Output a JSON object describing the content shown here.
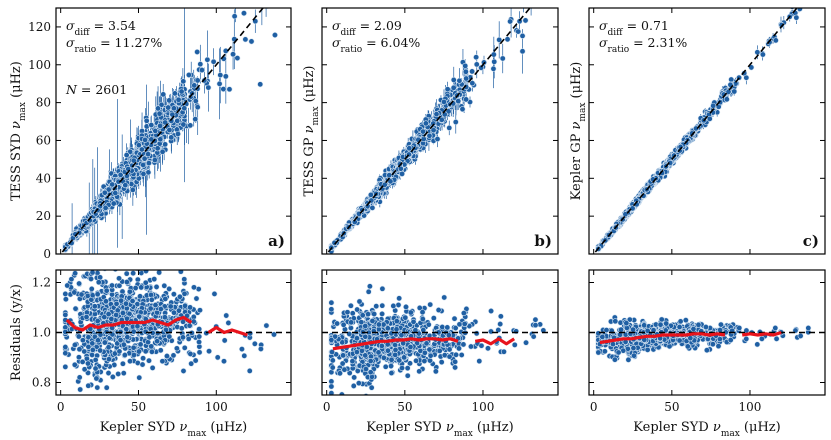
{
  "chart_data": [
    {
      "id": "a",
      "type": "scatter",
      "panel_label": "a)",
      "ylabel": "TESS SYD ν_max (μHz)",
      "xlabel": "",
      "xlim": [
        -3,
        148
      ],
      "ylim": [
        0,
        130
      ],
      "yticks": [
        "0",
        "20",
        "40",
        "60",
        "80",
        "100",
        "120"
      ],
      "annotations": [
        "σ_diff = 3.54",
        "σ_ratio = 11.27%",
        "N = 2601"
      ],
      "sigma_diff": 3.54,
      "sigma_ratio_pct": 11.27,
      "n_stars": 2601,
      "scatter_frac": 0.12,
      "reference_line": "y = x",
      "has_error_bars": true
    },
    {
      "id": "b",
      "type": "scatter",
      "panel_label": "b)",
      "ylabel": "TESS GP ν_max (μHz)",
      "xlabel": "",
      "xlim": [
        -3,
        148
      ],
      "ylim": [
        0,
        130
      ],
      "annotations": [
        "σ_diff = 2.09",
        "σ_ratio = 6.04%"
      ],
      "sigma_diff": 2.09,
      "sigma_ratio_pct": 6.04,
      "scatter_frac": 0.06,
      "reference_line": "y = x",
      "has_error_bars": true
    },
    {
      "id": "c",
      "type": "scatter",
      "panel_label": "c)",
      "ylabel": "Kepler GP ν_max (μHz)",
      "xlabel": "",
      "xlim": [
        -3,
        148
      ],
      "ylim": [
        0,
        130
      ],
      "annotations": [
        "σ_diff = 0.71",
        "σ_ratio = 2.31%"
      ],
      "sigma_diff": 0.71,
      "sigma_ratio_pct": 2.31,
      "scatter_frac": 0.023,
      "reference_line": "y = x",
      "has_error_bars": true
    },
    {
      "id": "res_a",
      "type": "scatter",
      "ylabel": "Residuals (y/x)",
      "xlabel": "Kepler SYD ν_max (μHz)",
      "xlim": [
        -3,
        148
      ],
      "ylim": [
        0.75,
        1.25
      ],
      "yticks": [
        "0.8",
        "1.0",
        "1.2"
      ],
      "xticks": [
        "0",
        "50",
        "100"
      ],
      "reference_line": "y = 1",
      "scatter_sd": 0.095,
      "running_median": {
        "x": [
          4,
          9,
          14,
          19,
          24,
          29,
          34,
          39,
          44,
          49,
          54,
          59,
          64,
          69,
          74,
          79,
          84,
          null,
          95,
          100,
          105,
          110,
          115,
          120
        ],
        "y": [
          1.05,
          1.02,
          1.01,
          1.03,
          1.02,
          1.03,
          1.03,
          1.04,
          1.04,
          1.04,
          1.04,
          1.05,
          1.04,
          1.03,
          1.05,
          1.06,
          1.04,
          null,
          1.0,
          1.02,
          1.0,
          1.01,
          1.0,
          0.99
        ]
      }
    },
    {
      "id": "res_b",
      "type": "scatter",
      "ylabel": "",
      "xlabel": "Kepler SYD ν_max (μHz)",
      "xlim": [
        -3,
        148
      ],
      "ylim": [
        0.75,
        1.25
      ],
      "xticks": [
        "0",
        "50",
        "100"
      ],
      "reference_line": "y = 1",
      "scatter_sd": 0.06,
      "running_median": {
        "x": [
          4,
          9,
          14,
          19,
          24,
          29,
          34,
          39,
          44,
          49,
          54,
          59,
          64,
          69,
          74,
          79,
          84,
          null,
          95,
          100,
          105,
          110,
          115,
          120
        ],
        "y": [
          0.935,
          0.94,
          0.945,
          0.95,
          0.955,
          0.96,
          0.965,
          0.965,
          0.97,
          0.97,
          0.975,
          0.97,
          0.975,
          0.975,
          0.97,
          0.975,
          0.965,
          null,
          0.965,
          0.97,
          0.955,
          0.975,
          0.955,
          0.975
        ]
      }
    },
    {
      "id": "res_c",
      "type": "scatter",
      "ylabel": "",
      "xlabel": "Kepler SYD ν_max (μHz)",
      "xlim": [
        -3,
        148
      ],
      "ylim": [
        0.75,
        1.25
      ],
      "xticks": [
        "0",
        "50",
        "100"
      ],
      "reference_line": "y = 1",
      "scatter_sd": 0.025,
      "running_median": {
        "x": [
          4,
          9,
          14,
          19,
          24,
          29,
          34,
          39,
          44,
          49,
          54,
          59,
          64,
          69,
          74,
          79,
          84,
          null,
          95,
          100,
          105,
          110,
          115,
          120
        ],
        "y": [
          0.96,
          0.965,
          0.97,
          0.975,
          0.975,
          0.98,
          0.985,
          0.985,
          0.99,
          0.99,
          0.99,
          0.99,
          0.995,
          0.995,
          0.99,
          0.995,
          0.99,
          null,
          0.99,
          0.995,
          0.99,
          0.995,
          0.99,
          1.0
        ]
      }
    }
  ],
  "colors": {
    "point_fill": "#1f5fa3",
    "point_edge": "#d8e6f3",
    "errorbar": "#1f5fa3",
    "running_median": "#e8141c",
    "reference_line": "#000000"
  }
}
